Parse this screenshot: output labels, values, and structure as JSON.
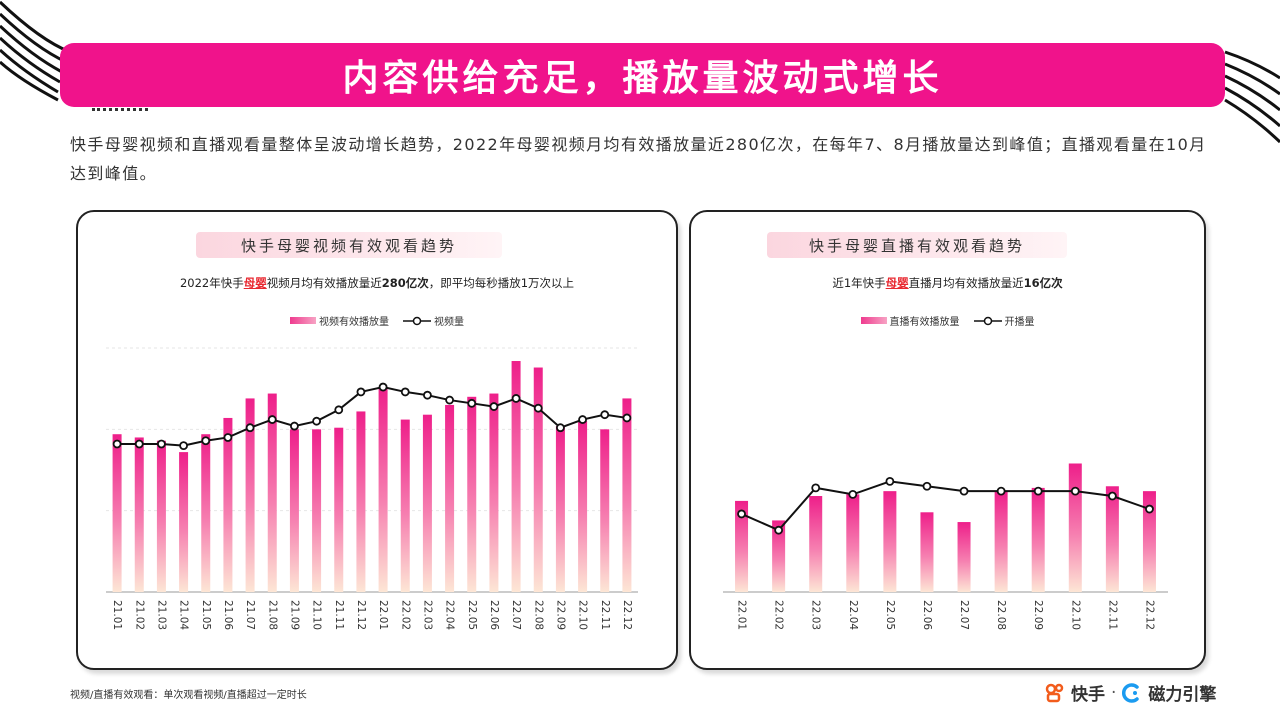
{
  "header": {
    "title": "内容供给充足，播放量波动式增长"
  },
  "intro": "快手母婴视频和直播观看量整体呈波动增长趋势，2022年母婴视频月均有效播放量近280亿次，在每年7、8月播放量达到峰值；直播观看量在10月达到峰值。",
  "footnote": "视频/直播有效观看：单次观看视频/直播超过一定时长",
  "brand": {
    "primary": "快手",
    "separator": "·",
    "secondary": "磁力引擎"
  },
  "colors": {
    "accent": "#f0138b",
    "bar_top": "#ee1f8a",
    "bar_bottom": "#fde6d5",
    "line": "#111111",
    "highlight": "#e8272f"
  },
  "chart_data": [
    {
      "type": "bar",
      "title": "快手母婴视频有效观看趋势",
      "subtitle": {
        "pre": "2022年快手",
        "hl": "母婴",
        "mid": "视频月均有效播放量近",
        "bold": "280亿次",
        "post": "，即平均每秒播放1万次以上"
      },
      "legend": [
        "视频有效播放量",
        "视频量"
      ],
      "categories": [
        "21.01",
        "21.02",
        "21.03",
        "21.04",
        "21.05",
        "21.06",
        "21.07",
        "21.08",
        "21.09",
        "21.10",
        "21.11",
        "21.12",
        "22.01",
        "22.02",
        "22.03",
        "22.04",
        "22.05",
        "22.06",
        "22.07",
        "22.08",
        "22.09",
        "22.10",
        "22.11",
        "22.12"
      ],
      "series": [
        {
          "name": "视频有效播放量",
          "type": "bar",
          "values": [
            97,
            95,
            93,
            86,
            97,
            107,
            119,
            122,
            100,
            100,
            101,
            111,
            126,
            106,
            109,
            115,
            120,
            122,
            142,
            138,
            102,
            105,
            100,
            119
          ]
        },
        {
          "name": "视频量",
          "type": "line",
          "values": [
            91,
            91,
            91,
            90,
            93,
            95,
            101,
            106,
            102,
            105,
            112,
            123,
            126,
            123,
            121,
            118,
            116,
            114,
            119,
            113,
            101,
            106,
            109,
            107
          ]
        }
      ],
      "ylim": [
        0,
        150
      ],
      "grid": true
    },
    {
      "type": "bar",
      "title": "快手母婴直播有效观看趋势",
      "subtitle": {
        "pre": "近1年快手",
        "hl": "母婴",
        "mid": "直播月均有效播放量近",
        "bold": "16亿次",
        "post": ""
      },
      "legend": [
        "直播有效播放量",
        "开播量"
      ],
      "categories": [
        "22.01",
        "22.02",
        "22.03",
        "22.04",
        "22.05",
        "22.06",
        "22.07",
        "22.08",
        "22.09",
        "22.10",
        "22.11",
        "22.12"
      ],
      "series": [
        {
          "name": "直播有效播放量",
          "type": "bar",
          "values": [
            56,
            44,
            59,
            60,
            62,
            49,
            43,
            62,
            64,
            79,
            65,
            62
          ]
        },
        {
          "name": "开播量",
          "type": "line",
          "values": [
            48,
            38,
            64,
            60,
            68,
            65,
            62,
            62,
            62,
            62,
            59,
            51
          ]
        }
      ],
      "ylim": [
        0,
        150
      ],
      "grid": false
    }
  ]
}
